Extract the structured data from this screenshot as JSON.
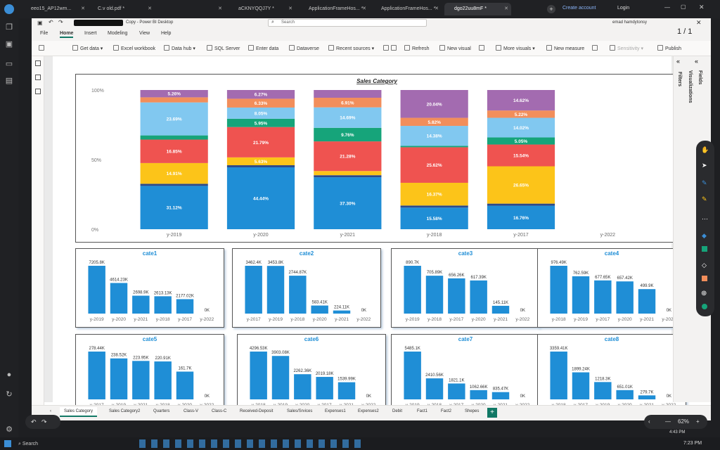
{
  "browser": {
    "tabs": [
      {
        "label": "eeo15_AP12wm..."
      },
      {
        "label": "C.v old.pdf *"
      },
      {
        "label": ""
      },
      {
        "label": "aCKNYQQJ7Y *"
      },
      {
        "label": "ApplicationFrameHos... *"
      },
      {
        "label": "ApplicationFrameHos... *"
      },
      {
        "label": "dgo22uu8mF *"
      }
    ],
    "create_account": "Create account",
    "login": "Login"
  },
  "app": {
    "title": "Copy - Power BI Desktop",
    "search_placeholder": "Search",
    "user": "emad hamdytonsy",
    "page_counter": "1 / 1"
  },
  "menu": [
    "File",
    "Home",
    "Insert",
    "Modeling",
    "View",
    "Help"
  ],
  "ribbon": {
    "get_data": "Get data",
    "excel": "Excel workbook",
    "data_hub": "Data hub",
    "sql": "SQL Server",
    "enter_data": "Enter data",
    "dataverse": "Dataverse",
    "recent": "Recent sources",
    "refresh": "Refresh",
    "new_visual": "New visual",
    "more_visuals": "More visuals",
    "new_measure": "New measure",
    "sensitivity": "Sensitivity",
    "publish": "Publish"
  },
  "panes": {
    "filters": "Filters",
    "visualizations": "Visualizations",
    "fields": "Fields"
  },
  "page_tabs": [
    "Sales Category",
    "Sales Category2",
    "Quarters",
    "Class-V",
    "Class-C",
    "Received-Deposit",
    "Sales/Srvices",
    "Expenses1",
    "Expenses2",
    "Debit",
    "Fact1",
    "Fact2",
    "Shepes"
  ],
  "zoom": "62%",
  "taskbar": {
    "search": "Search",
    "time": "7:23 PM",
    "time2": "4:43 PM"
  },
  "colors": {
    "blue": "#1f8ed6",
    "navy": "#2b4a8b",
    "yellow": "#fcc419",
    "red": "#ef5350",
    "green": "#16a47a",
    "lightblue": "#81c8f0",
    "orange": "#f28e5b",
    "purple": "#a36bb0",
    "accent": "#117865"
  },
  "chart_data": [
    {
      "type": "bar",
      "stacked": "100%",
      "title": "Sales Category",
      "categories": [
        "y-2019",
        "y-2020",
        "y-2021",
        "y-2018",
        "y-2017",
        "y-2022"
      ],
      "yticks": [
        "100%",
        "50%",
        "0%"
      ],
      "series": [
        {
          "values": [
            31.12,
            44.44,
            37.3,
            15.58,
            16.76,
            0
          ],
          "color": "#1f8ed6"
        },
        {
          "values": [
            1.5,
            1.5,
            1.5,
            1.5,
            1.5,
            0
          ],
          "color": "#2b4a8b"
        },
        {
          "values": [
            14.91,
            5.63,
            3.0,
            16.37,
            26.65,
            0
          ],
          "color": "#fcc419"
        },
        {
          "values": [
            16.85,
            21.79,
            21.28,
            25.62,
            15.54,
            0
          ],
          "color": "#ef5350"
        },
        {
          "values": [
            3.0,
            5.95,
            9.76,
            1.0,
            5.05,
            0
          ],
          "color": "#16a47a"
        },
        {
          "values": [
            23.69,
            8.05,
            14.69,
            14.38,
            14.02,
            0
          ],
          "color": "#81c8f0"
        },
        {
          "values": [
            3.67,
            6.33,
            6.91,
            5.82,
            5.22,
            0
          ],
          "color": "#f28e5b"
        },
        {
          "values": [
            5.26,
            6.27,
            5.56,
            20.04,
            14.62,
            0
          ],
          "color": "#a36bb0"
        }
      ],
      "labels": [
        [
          "31.12%",
          "44.44%",
          "37.30%",
          "15.58%",
          "16.76%",
          ""
        ],
        [
          "",
          "",
          "",
          "",
          "",
          ""
        ],
        [
          "14.91%",
          "5.63%",
          "",
          "16.37%",
          "26.65%",
          ""
        ],
        [
          "16.85%",
          "21.79%",
          "21.28%",
          "25.62%",
          "15.54%",
          ""
        ],
        [
          "",
          "5.95%",
          "9.76%",
          "",
          "5.05%",
          ""
        ],
        [
          "23.69%",
          "8.05%",
          "14.69%",
          "14.38%",
          "14.02%",
          ""
        ],
        [
          "",
          "6.33%",
          "6.91%",
          "5.82%",
          "5.22%",
          ""
        ],
        [
          "5.26%",
          "6.27%",
          "",
          "20.04%",
          "14.62%",
          ""
        ]
      ]
    },
    {
      "type": "bar",
      "title": "cate1",
      "categories": [
        "y-2019",
        "y-2020",
        "y-2021",
        "y-2018",
        "y-2017",
        "y-2022"
      ],
      "values": [
        7205.8,
        4614.23,
        2698.9,
        2613.13,
        2177.02,
        0
      ],
      "labels": [
        "7205.8K",
        "4614.23K",
        "2698.9K",
        "2613.13K",
        "2177.02K",
        "0K"
      ]
    },
    {
      "type": "bar",
      "title": "cate2",
      "categories": [
        "y-2017",
        "y-2019",
        "y-2018",
        "y-2020",
        "y-2021",
        "y-2022"
      ],
      "values": [
        3462.4,
        3453.8,
        2744.87,
        583.41,
        224.11,
        0
      ],
      "labels": [
        "3462.4K",
        "3453.8K",
        "2744.87K",
        "583.41K",
        "224.11K",
        "0K"
      ]
    },
    {
      "type": "bar",
      "title": "cate3",
      "categories": [
        "y-2019",
        "y-2018",
        "y-2017",
        "y-2020",
        "y-2021",
        "y-2022"
      ],
      "values": [
        890.7,
        705.89,
        656.26,
        617.39,
        145.11,
        0
      ],
      "labels": [
        "890.7K",
        "705.89K",
        "656.26K",
        "617.39K",
        "145.11K",
        "0K"
      ]
    },
    {
      "type": "bar",
      "title": "cate4",
      "categories": [
        "y-2018",
        "y-2019",
        "y-2017",
        "y-2020",
        "y-2021",
        "y-2022"
      ],
      "values": [
        976.49,
        762.59,
        677.65,
        657.42,
        499.9,
        0
      ],
      "labels": [
        "976.49K",
        "762.59K",
        "677.65K",
        "657.42K",
        "499.9K",
        "0K"
      ]
    },
    {
      "type": "bar",
      "title": "cate5",
      "categories": [
        "y-2017",
        "y-2019",
        "y-2021",
        "y-2018",
        "y-2020",
        "y-2022"
      ],
      "values": [
        278.44,
        238.52,
        223.95,
        220.91,
        161.7,
        0
      ],
      "labels": [
        "278.44K",
        "238.52K",
        "223.95K",
        "220.91K",
        "161.7K",
        "0K"
      ]
    },
    {
      "type": "bar",
      "title": "cate6",
      "categories": [
        "y-2018",
        "y-2019",
        "y-2020",
        "y-2017",
        "y-2021",
        "y-2022"
      ],
      "values": [
        4296.53,
        3903.08,
        2262.36,
        2019.18,
        1539.99,
        0
      ],
      "labels": [
        "4296.53K",
        "3903.08K",
        "2262.36K",
        "2019.18K",
        "1539.99K",
        "0K"
      ]
    },
    {
      "type": "bar",
      "title": "cate7",
      "categories": [
        "y-2019",
        "y-2018",
        "y-2017",
        "y-2020",
        "y-2021",
        "y-2022"
      ],
      "values": [
        5485.1,
        2410.56,
        1821.1,
        1062.66,
        835.47,
        0
      ],
      "labels": [
        "5485.1K",
        "2410.56K",
        "1821.1K",
        "1062.66K",
        "835.47K",
        "0K"
      ]
    },
    {
      "type": "bar",
      "title": "cate8",
      "categories": [
        "y-2018",
        "y-2017",
        "y-2019",
        "y-2020",
        "y-2021",
        "y-2022"
      ],
      "values": [
        3359.41,
        1899.24,
        1218.3,
        651.01,
        279.7,
        0
      ],
      "labels": [
        "3359.41K",
        "1899.24K",
        "1218.3K",
        "651.01K",
        "279.7K",
        "0K"
      ]
    }
  ]
}
